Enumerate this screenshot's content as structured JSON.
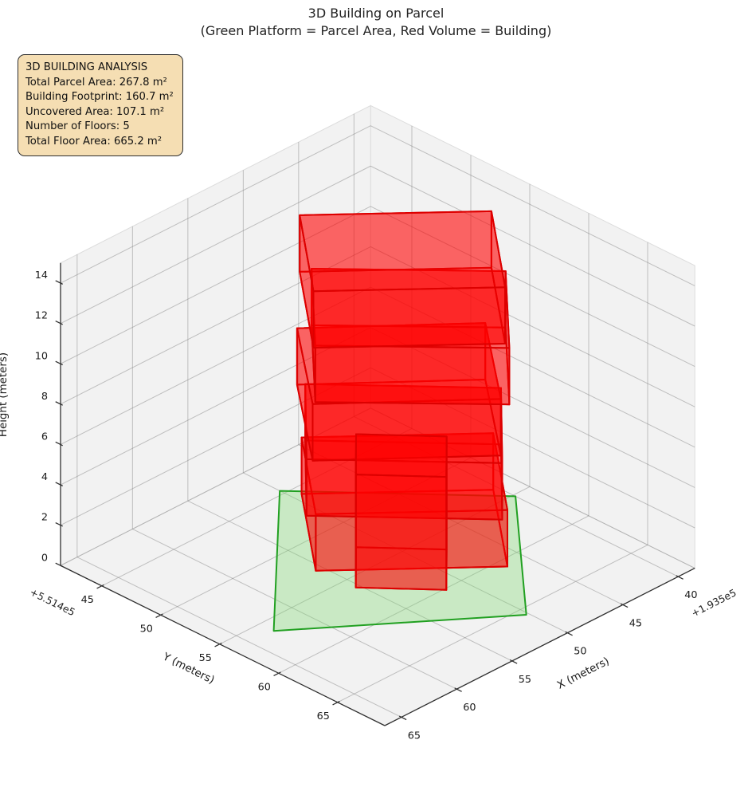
{
  "title": {
    "line1": "3D Building on Parcel",
    "line2": "(Green Platform = Parcel Area, Red Volume = Building)"
  },
  "info_box": {
    "bg": "#f5deb3",
    "border": "#2e2e2e",
    "lines": [
      "3D BUILDING ANALYSIS",
      "Total Parcel Area: 267.8 m²",
      "Building Footprint: 160.7 m²",
      "Uncovered Area: 107.1 m²",
      "Number of Floors: 5",
      "Total Floor Area: 665.2 m²"
    ]
  },
  "chart_data": {
    "type": "3d-building-parcel-plot",
    "axes": {
      "x": {
        "label": "X (meters)",
        "ticks": [
          40,
          45,
          50,
          55,
          60,
          65
        ],
        "range": [
          38.5,
          66.5
        ],
        "offset_text": "+1.935e5"
      },
      "y": {
        "label": "Y (meters)",
        "ticks": [
          45,
          50,
          55,
          60,
          65
        ],
        "range": [
          41.5,
          69.0
        ],
        "offset_text": "+5.514e5"
      },
      "z": {
        "label": "Height (meters)",
        "ticks": [
          0,
          2,
          4,
          6,
          8,
          10,
          12,
          14
        ],
        "range": [
          0,
          15
        ]
      }
    },
    "parcel": {
      "area_m2": 267.8,
      "z": 0,
      "corners": [
        [
          50.0,
          44.6
        ],
        [
          40.0,
          55.2
        ],
        [
          50.2,
          65.7
        ],
        [
          62.9,
          56.2
        ]
      ],
      "fill": "#7fd96f",
      "fill_alpha": 0.35,
      "edge": "#21a021",
      "edge_width": 2
    },
    "building": {
      "num_floors": 5,
      "floor_height_m": 2.8,
      "footprint_m2": 160.7,
      "uncovered_m2": 107.1,
      "total_floor_area_m2": 665.2,
      "fill": "#ff0000",
      "fill_alpha": 0.36,
      "edge": "#dd0000",
      "edge_width": 2,
      "floors": [
        {
          "center": [
            48.0,
            53.3
          ],
          "w": 11.9,
          "d": 9.5,
          "angle_deg": -41.5,
          "z0": 0.0,
          "z1": 2.8
        },
        {
          "center": [
            48.6,
            53.8
          ],
          "w": 12.1,
          "d": 9.3,
          "angle_deg": -46.3,
          "z0": 2.8,
          "z1": 5.6
        },
        {
          "center": [
            48.5,
            53.3
          ],
          "w": 11.7,
          "d": 9.4,
          "angle_deg": -40.9,
          "z0": 5.6,
          "z1": 8.4
        },
        {
          "center": [
            48.1,
            53.9
          ],
          "w": 12.0,
          "d": 9.5,
          "angle_deg": -45.4,
          "z0": 8.4,
          "z1": 11.2
        },
        {
          "center": [
            48.4,
            53.5
          ],
          "w": 11.9,
          "d": 9.4,
          "angle_deg": -41.6,
          "z0": 11.2,
          "z1": 14.0
        }
      ],
      "annex": {
        "center": [
          51.6,
          56.4
        ],
        "w": 5.6,
        "d": 5.0,
        "angle_deg": -47.0,
        "z0": 0.0,
        "z1": 5.6
      }
    },
    "style": {
      "pane_fill": "#f2f2f2",
      "pane_edge": "#dcdcdc",
      "grid_color": "rgba(120,120,120,0.42)",
      "spine_color": "#2f2f2f",
      "text_color": "#1a1a1a"
    }
  }
}
